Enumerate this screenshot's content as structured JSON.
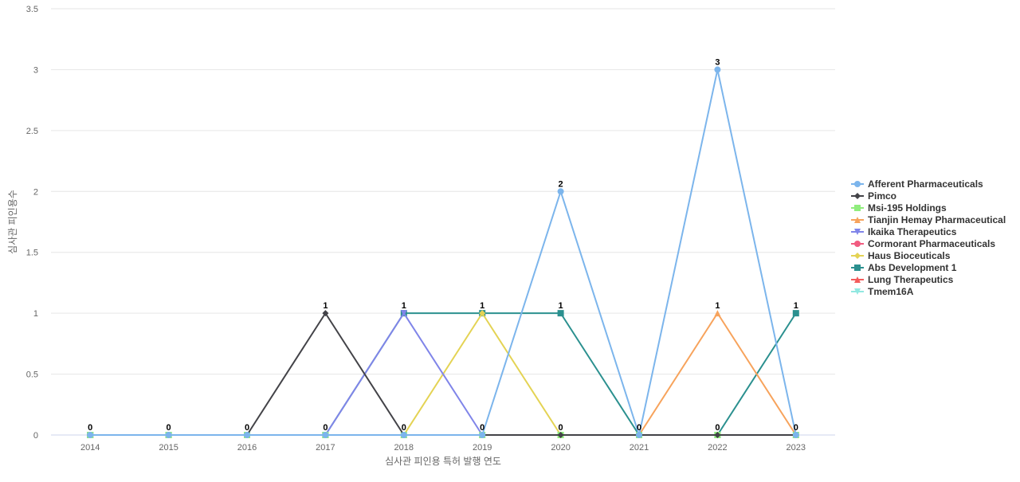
{
  "chart_data": {
    "type": "line",
    "xlabel": "심사관 피인용 특허 발행 연도",
    "ylabel": "심사관 피인용수",
    "categories": [
      "2014",
      "2015",
      "2016",
      "2017",
      "2018",
      "2019",
      "2020",
      "2021",
      "2022",
      "2023"
    ],
    "y_ticks": [
      "0",
      "0.5",
      "1",
      "1.5",
      "2",
      "2.5",
      "3",
      "3.5"
    ],
    "ylim": [
      0,
      3.5
    ],
    "grid": true,
    "legend_position": "right",
    "series": [
      {
        "name": "Afferent Pharmaceuticals",
        "color": "#7cb5ec",
        "marker": "circle",
        "values": [
          0,
          0,
          0,
          0,
          0,
          0,
          2,
          0,
          3,
          0
        ]
      },
      {
        "name": "Pimco",
        "color": "#434348",
        "marker": "diamond",
        "values": [
          0,
          0,
          0,
          1,
          0,
          0,
          0,
          0,
          0,
          0
        ]
      },
      {
        "name": "Msi-195 Holdings",
        "color": "#90ed7d",
        "marker": "square",
        "values": [
          0,
          0,
          0,
          0,
          0,
          0,
          0,
          0,
          0,
          0
        ]
      },
      {
        "name": "Tianjin Hemay Pharmaceutical",
        "color": "#f7a35c",
        "marker": "triangle",
        "values": [
          0,
          0,
          0,
          0,
          0,
          0,
          0,
          0,
          1,
          0
        ]
      },
      {
        "name": "Ikaika Therapeutics",
        "color": "#8085e9",
        "marker": "triangle-down",
        "values": [
          0,
          0,
          0,
          0,
          1,
          0,
          0,
          0,
          0,
          0
        ]
      },
      {
        "name": "Cormorant Pharmaceuticals",
        "color": "#f15c80",
        "marker": "circle",
        "values": [
          0,
          0,
          0,
          0,
          0,
          0,
          0,
          0,
          0,
          0
        ]
      },
      {
        "name": "Haus Bioceuticals",
        "color": "#e4d354",
        "marker": "diamond",
        "values": [
          0,
          0,
          0,
          0,
          0,
          1,
          0,
          0,
          0,
          0
        ]
      },
      {
        "name": "Abs Development 1",
        "color": "#2b908f",
        "marker": "square",
        "values": [
          0,
          0,
          0,
          0,
          1,
          1,
          1,
          0,
          0,
          1
        ]
      },
      {
        "name": "Lung Therapeutics",
        "color": "#f45b5b",
        "marker": "triangle",
        "values": [
          0,
          0,
          0,
          0,
          0,
          0,
          0,
          0,
          0,
          0
        ]
      },
      {
        "name": "Tmem16A",
        "color": "#91e8e1",
        "marker": "triangle-down",
        "values": [
          0,
          0,
          0,
          0,
          0,
          0,
          0,
          0,
          0,
          0
        ]
      }
    ],
    "data_labels": [
      {
        "category": "2014",
        "text": "0",
        "value": 0
      },
      {
        "category": "2015",
        "text": "0",
        "value": 0
      },
      {
        "category": "2016",
        "text": "0",
        "value": 0
      },
      {
        "category": "2017",
        "text": "1",
        "value": 1
      },
      {
        "category": "2017",
        "text": "0",
        "value": 0
      },
      {
        "category": "2018",
        "text": "1",
        "value": 1
      },
      {
        "category": "2018",
        "text": "0",
        "value": 0
      },
      {
        "category": "2019",
        "text": "1",
        "value": 1
      },
      {
        "category": "2019",
        "text": "0",
        "value": 0
      },
      {
        "category": "2020",
        "text": "2",
        "value": 2
      },
      {
        "category": "2020",
        "text": "1",
        "value": 1
      },
      {
        "category": "2020",
        "text": "0",
        "value": 0
      },
      {
        "category": "2021",
        "text": "0",
        "value": 0
      },
      {
        "category": "2022",
        "text": "3",
        "value": 3
      },
      {
        "category": "2022",
        "text": "1",
        "value": 1
      },
      {
        "category": "2022",
        "text": "0",
        "value": 0
      },
      {
        "category": "2023",
        "text": "1",
        "value": 1
      },
      {
        "category": "2023",
        "text": "0",
        "value": 0
      }
    ]
  }
}
